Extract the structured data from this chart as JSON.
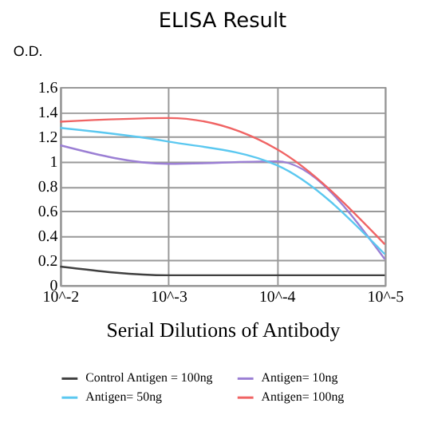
{
  "chart_data": {
    "type": "line",
    "title": "ELISA Result",
    "xlabel": "Serial Dilutions of Antibody",
    "ylabel": "O.D.",
    "categories": [
      "10^-2",
      "10^-3",
      "10^-4",
      "10^-5"
    ],
    "series": [
      {
        "name": "Control Antigen = 100ng",
        "color": "#404040",
        "values": [
          0.15,
          0.08,
          0.08,
          0.08
        ]
      },
      {
        "name": "Antigen= 10ng",
        "color": "#9b7fd4",
        "values": [
          1.13,
          0.98,
          1.0,
          0.21
        ]
      },
      {
        "name": "Antigen= 50ng",
        "color": "#5bc8f0",
        "values": [
          1.27,
          1.16,
          0.97,
          0.25
        ]
      },
      {
        "name": "Antigen= 100ng",
        "color": "#f06464",
        "values": [
          1.32,
          1.35,
          1.1,
          0.33
        ]
      }
    ],
    "ylim": [
      0,
      1.6
    ],
    "yticks": [
      0,
      0.2,
      0.4,
      0.6,
      0.8,
      1,
      1.2,
      1.4,
      1.6
    ],
    "grid": true,
    "legend": "bottom",
    "marker": "none",
    "line_style": "solid"
  }
}
